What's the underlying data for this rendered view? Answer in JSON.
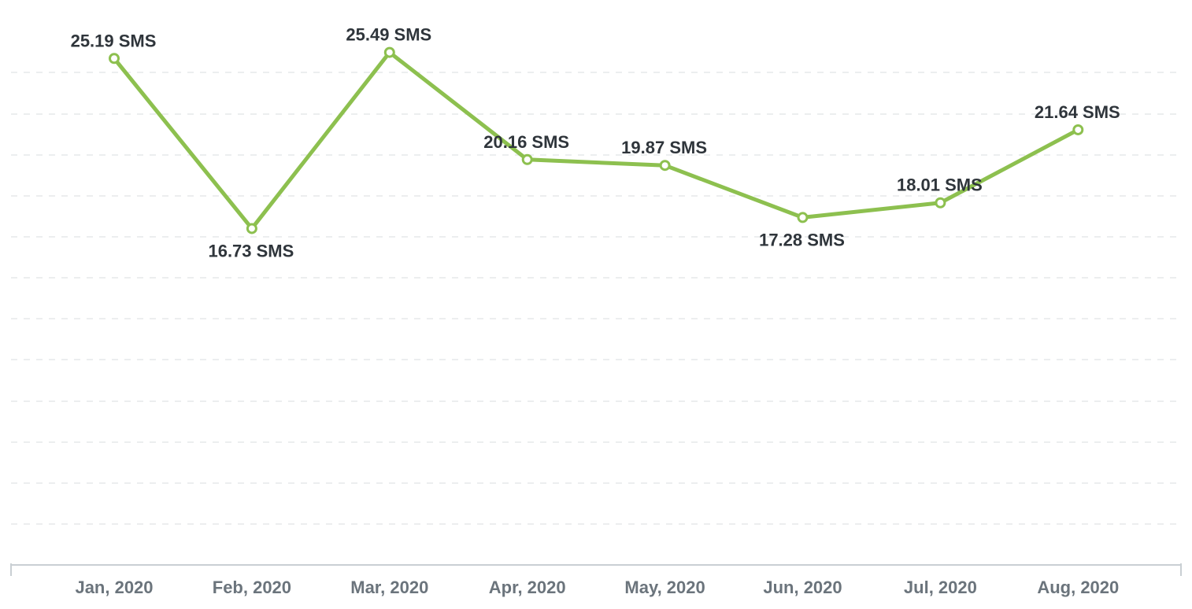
{
  "chart_data": {
    "type": "line",
    "categories": [
      "Jan, 2020",
      "Feb, 2020",
      "Mar, 2020",
      "Apr, 2020",
      "May, 2020",
      "Jun, 2020",
      "Jul, 2020",
      "Aug, 2020"
    ],
    "series": [
      {
        "values": [
          25.19,
          16.73,
          25.49,
          20.16,
          19.87,
          17.28,
          18.01,
          21.64
        ],
        "color": "#8dc04f"
      }
    ],
    "data_labels": [
      "25.19 SMS",
      "16.73 SMS",
      "25.49 SMS",
      "20.16 SMS",
      "19.87 SMS",
      "17.28 SMS",
      "18.01 SMS",
      "21.64 SMS"
    ],
    "label_position": [
      "above",
      "below",
      "above",
      "above",
      "above",
      "below",
      "above",
      "above"
    ],
    "ylim": [
      0,
      27
    ],
    "grid": true,
    "title": "",
    "xlabel": "",
    "ylabel": ""
  }
}
